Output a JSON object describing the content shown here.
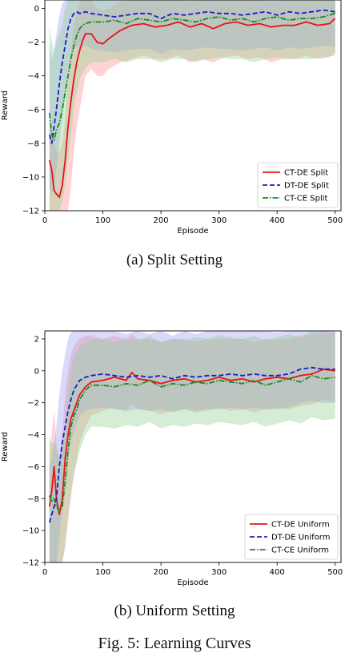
{
  "captions": {
    "a": "(a) Split Setting",
    "b": "(b) Uniform Setting",
    "figure": "Fig. 5: Learning Curves"
  },
  "chart_data": [
    {
      "type": "line",
      "title": "",
      "xlabel": "Episode",
      "ylabel": "Reward",
      "xlim": [
        0,
        510
      ],
      "ylim": [
        -12,
        0.5
      ],
      "xticks": [
        0,
        100,
        200,
        300,
        400,
        500
      ],
      "yticks": [
        -12,
        -10,
        -8,
        -6,
        -4,
        -2,
        0
      ],
      "legend_position": "lower-right",
      "grid": false,
      "series": [
        {
          "name": "CT-DE Split",
          "color": "#e8131b",
          "dash": "solid",
          "band_color": "#ff8c8c",
          "x": [
            8,
            12,
            16,
            20,
            25,
            30,
            35,
            40,
            45,
            50,
            55,
            60,
            65,
            70,
            80,
            90,
            100,
            110,
            130,
            150,
            170,
            190,
            210,
            230,
            250,
            270,
            290,
            310,
            330,
            350,
            370,
            390,
            410,
            430,
            450,
            470,
            490,
            500
          ],
          "y": [
            -9.0,
            -9.6,
            -10.8,
            -11.0,
            -11.2,
            -10.5,
            -9.0,
            -7.0,
            -5.5,
            -4.2,
            -3.2,
            -2.5,
            -1.9,
            -1.5,
            -1.5,
            -2.0,
            -2.1,
            -1.8,
            -1.3,
            -1.0,
            -0.9,
            -1.1,
            -1.0,
            -0.8,
            -1.1,
            -0.9,
            -1.2,
            -0.9,
            -0.8,
            -1.0,
            -0.9,
            -1.1,
            -1.0,
            -1.0,
            -0.8,
            -1.0,
            -0.9,
            -0.6
          ],
          "band_low": [
            -12,
            -12,
            -12,
            -12,
            -12,
            -12,
            -12,
            -12,
            -10.5,
            -8.5,
            -7,
            -6,
            -5,
            -4,
            -3.6,
            -4,
            -4,
            -3.6,
            -3.2,
            -3,
            -2.8,
            -3,
            -3,
            -2.8,
            -3.2,
            -3,
            -3.2,
            -2.9,
            -2.8,
            -3,
            -2.9,
            -3.2,
            -3.0,
            -3.0,
            -2.8,
            -3.0,
            -2.9,
            -2.6
          ],
          "band_high": [
            -7,
            -7.5,
            -8,
            -8.5,
            -8.5,
            -8,
            -6.5,
            -4,
            -2.5,
            -1,
            -0.2,
            0.4,
            0.5,
            0.5,
            0.5,
            0.0,
            -0.1,
            0.0,
            0.4,
            0.5,
            0.5,
            0.5,
            0.5,
            0.5,
            0.4,
            0.5,
            0.5,
            0.5,
            0.5,
            0.5,
            0.5,
            0.4,
            0.5,
            0.5,
            0.5,
            0.5,
            0.5,
            0.5
          ]
        },
        {
          "name": "DT-DE Split",
          "color": "#1c1cc8",
          "dash": "6,3",
          "band_color": "#9c9cf0",
          "x": [
            8,
            12,
            16,
            20,
            25,
            30,
            35,
            40,
            45,
            50,
            55,
            60,
            70,
            80,
            100,
            120,
            140,
            160,
            180,
            200,
            220,
            240,
            260,
            280,
            300,
            320,
            340,
            360,
            380,
            400,
            420,
            440,
            460,
            480,
            500
          ],
          "y": [
            -7.5,
            -8.0,
            -7.0,
            -6.0,
            -4.5,
            -3.2,
            -2.2,
            -1.2,
            -0.6,
            -0.3,
            -0.2,
            -0.3,
            -0.2,
            -0.3,
            -0.4,
            -0.5,
            -0.4,
            -0.3,
            -0.3,
            -0.6,
            -0.3,
            -0.4,
            -0.3,
            -0.2,
            -0.3,
            -0.3,
            -0.4,
            -0.3,
            -0.2,
            -0.4,
            -0.2,
            -0.3,
            -0.2,
            -0.1,
            -0.2
          ],
          "band_low": [
            -10.5,
            -11.0,
            -10.5,
            -9.5,
            -8.0,
            -6.5,
            -5.0,
            -3.8,
            -2.8,
            -2.5,
            -2.2,
            -2.4,
            -2.2,
            -2.4,
            -2.5,
            -2.6,
            -2.5,
            -2.4,
            -2.4,
            -2.7,
            -2.4,
            -2.5,
            -2.4,
            -2.3,
            -2.4,
            -2.4,
            -2.5,
            -2.4,
            -2.3,
            -2.5,
            -2.3,
            -2.4,
            -2.3,
            -2.2,
            -2.3
          ],
          "band_high": [
            -2.0,
            -3.0,
            -2.5,
            -1.5,
            -0.5,
            0.3,
            0.5,
            0.5,
            0.5,
            0.5,
            0.5,
            0.5,
            0.5,
            0.5,
            0.5,
            0.5,
            0.5,
            0.5,
            0.5,
            0.5,
            0.5,
            0.5,
            0.5,
            0.5,
            0.5,
            0.5,
            0.5,
            0.5,
            0.5,
            0.5,
            0.5,
            0.5,
            0.5,
            0.5,
            0.5
          ]
        },
        {
          "name": "CT-CE Split",
          "color": "#1f8a1f",
          "dash": "7,2,1.5,2",
          "band_color": "#8fd08f",
          "x": [
            8,
            12,
            16,
            20,
            25,
            30,
            35,
            40,
            45,
            50,
            55,
            60,
            65,
            70,
            80,
            100,
            120,
            140,
            160,
            180,
            200,
            220,
            240,
            260,
            280,
            300,
            320,
            340,
            360,
            380,
            400,
            420,
            440,
            460,
            480,
            500
          ],
          "y": [
            -6.2,
            -7.5,
            -7.8,
            -7.2,
            -6.8,
            -6.0,
            -5.0,
            -4.0,
            -3.0,
            -2.2,
            -1.6,
            -1.2,
            -1.0,
            -0.9,
            -0.8,
            -0.8,
            -0.7,
            -0.9,
            -0.6,
            -0.7,
            -0.8,
            -0.6,
            -0.7,
            -0.8,
            -0.6,
            -0.5,
            -0.7,
            -0.6,
            -0.8,
            -0.6,
            -0.5,
            -0.7,
            -0.6,
            -0.6,
            -0.5,
            -0.3
          ],
          "band_low": [
            -12,
            -12,
            -12,
            -12,
            -12,
            -11.5,
            -10.5,
            -9.0,
            -7.5,
            -6.0,
            -5.0,
            -4.2,
            -3.8,
            -3.5,
            -3.2,
            -3.2,
            -3.0,
            -3.2,
            -3.0,
            -3.0,
            -3.2,
            -3.0,
            -3.0,
            -3.2,
            -3.0,
            -2.9,
            -3.0,
            -3.0,
            -3.2,
            -3.0,
            -2.9,
            -3.0,
            -3.0,
            -3.0,
            -2.9,
            -2.8
          ],
          "band_high": [
            -1.0,
            -2.0,
            -2.5,
            -2.0,
            -1.5,
            -1.0,
            0.0,
            0.5,
            0.5,
            0.5,
            0.5,
            0.5,
            0.5,
            0.5,
            0.5,
            0.5,
            0.5,
            0.5,
            0.5,
            0.5,
            0.5,
            0.5,
            0.5,
            0.5,
            0.5,
            0.5,
            0.5,
            0.5,
            0.5,
            0.5,
            0.5,
            0.5,
            0.5,
            0.5,
            0.5,
            0.5
          ]
        }
      ]
    },
    {
      "type": "line",
      "title": "",
      "xlabel": "Episode",
      "ylabel": "Reward",
      "xlim": [
        0,
        510
      ],
      "ylim": [
        -12,
        2.5
      ],
      "xticks": [
        0,
        100,
        200,
        300,
        400,
        500
      ],
      "yticks": [
        -12,
        -10,
        -8,
        -6,
        -4,
        -2,
        0,
        2
      ],
      "legend_position": "lower-right",
      "grid": false,
      "series": [
        {
          "name": "CT-DE Uniform",
          "color": "#e8131b",
          "dash": "solid",
          "band_color": "#ff8c8c",
          "x": [
            8,
            12,
            16,
            20,
            25,
            30,
            35,
            40,
            45,
            50,
            55,
            60,
            70,
            80,
            100,
            120,
            140,
            150,
            160,
            180,
            200,
            220,
            240,
            260,
            280,
            300,
            320,
            340,
            360,
            380,
            400,
            420,
            440,
            460,
            480,
            500
          ],
          "y": [
            -8.5,
            -7.5,
            -6.0,
            -8.0,
            -9.0,
            -8.0,
            -5.5,
            -4.0,
            -3.0,
            -2.5,
            -2.0,
            -1.5,
            -1.0,
            -0.7,
            -0.6,
            -0.4,
            -0.6,
            -0.1,
            -0.5,
            -0.6,
            -0.8,
            -0.6,
            -0.5,
            -0.7,
            -0.6,
            -0.4,
            -0.6,
            -0.5,
            -0.7,
            -0.5,
            -0.4,
            -0.5,
            -0.3,
            -0.2,
            0.1,
            0.0
          ],
          "band_low": [
            -12,
            -12,
            -12,
            -12,
            -12,
            -12,
            -11,
            -9.5,
            -8.0,
            -6.5,
            -5.5,
            -4.5,
            -3.5,
            -2.8,
            -2.5,
            -2.3,
            -2.5,
            -2.0,
            -2.4,
            -2.5,
            -2.7,
            -2.5,
            -2.4,
            -2.6,
            -2.5,
            -2.3,
            -2.5,
            -2.4,
            -2.6,
            -2.4,
            -2.3,
            -2.4,
            -2.2,
            -2.1,
            -1.8,
            -1.9
          ],
          "band_high": [
            -5.0,
            -4.0,
            -2.5,
            -4.5,
            -5.5,
            -4.0,
            -1.5,
            0.0,
            1.0,
            1.5,
            1.8,
            2.0,
            2.2,
            2.2,
            2.0,
            2.2,
            2.0,
            2.3,
            2.0,
            2.0,
            1.8,
            2.0,
            2.0,
            1.8,
            2.0,
            2.0,
            2.0,
            2.0,
            1.8,
            2.0,
            2.0,
            2.0,
            2.2,
            2.3,
            2.5,
            2.4
          ]
        },
        {
          "name": "DT-DE Uniform",
          "color": "#1c1cc8",
          "dash": "6,3",
          "band_color": "#9c9cf0",
          "x": [
            8,
            12,
            16,
            20,
            25,
            30,
            35,
            40,
            45,
            50,
            60,
            70,
            80,
            100,
            120,
            140,
            160,
            180,
            200,
            220,
            240,
            260,
            280,
            300,
            320,
            340,
            360,
            380,
            400,
            420,
            440,
            460,
            480,
            500
          ],
          "y": [
            -9.5,
            -9.0,
            -8.5,
            -8.0,
            -6.0,
            -4.5,
            -3.5,
            -2.5,
            -1.8,
            -1.2,
            -0.6,
            -0.4,
            -0.3,
            -0.2,
            -0.3,
            -0.4,
            -0.3,
            -0.4,
            -0.3,
            -0.5,
            -0.3,
            -0.4,
            -0.3,
            -0.3,
            -0.2,
            -0.3,
            -0.2,
            -0.3,
            -0.3,
            -0.2,
            0.1,
            0.2,
            0.1,
            0.1
          ],
          "band_low": [
            -12,
            -12,
            -12,
            -12,
            -10.5,
            -8.5,
            -7.0,
            -5.5,
            -4.5,
            -3.8,
            -2.8,
            -2.5,
            -2.4,
            -2.3,
            -2.4,
            -2.5,
            -2.4,
            -2.5,
            -2.4,
            -2.6,
            -2.4,
            -2.5,
            -2.4,
            -2.4,
            -2.3,
            -2.4,
            -2.3,
            -2.4,
            -2.4,
            -2.3,
            -2.0,
            -1.9,
            -2.0,
            -2.0
          ],
          "band_high": [
            -6.0,
            -5.5,
            -4.5,
            -3.5,
            -1.5,
            0.0,
            1.0,
            2.0,
            2.4,
            2.5,
            2.5,
            2.5,
            2.5,
            2.5,
            2.5,
            2.3,
            2.5,
            2.3,
            2.5,
            2.2,
            2.5,
            2.3,
            2.5,
            2.5,
            2.5,
            2.5,
            2.5,
            2.5,
            2.4,
            2.5,
            2.5,
            2.5,
            2.5,
            2.5
          ]
        },
        {
          "name": "CT-CE Uniform",
          "color": "#1f8a1f",
          "dash": "7,2,1.5,2",
          "band_color": "#8fd08f",
          "x": [
            8,
            12,
            16,
            20,
            25,
            30,
            35,
            40,
            45,
            50,
            55,
            60,
            70,
            80,
            100,
            120,
            140,
            160,
            180,
            200,
            220,
            240,
            260,
            280,
            300,
            320,
            340,
            360,
            380,
            400,
            420,
            440,
            460,
            480,
            500
          ],
          "y": [
            -7.8,
            -8.2,
            -8.0,
            -8.5,
            -8.8,
            -8.5,
            -7.0,
            -5.0,
            -3.5,
            -2.8,
            -2.4,
            -1.8,
            -1.2,
            -0.9,
            -0.9,
            -1.0,
            -0.8,
            -0.9,
            -0.6,
            -1.0,
            -0.8,
            -0.9,
            -0.7,
            -0.8,
            -0.6,
            -0.7,
            -0.8,
            -0.6,
            -0.9,
            -0.7,
            -0.5,
            -0.7,
            -0.3,
            -0.5,
            -0.4
          ],
          "band_low": [
            -12,
            -12,
            -12,
            -12,
            -12,
            -12,
            -11,
            -9.0,
            -7.5,
            -6.5,
            -5.8,
            -5.0,
            -4.0,
            -3.5,
            -3.5,
            -3.6,
            -3.4,
            -3.5,
            -3.2,
            -3.6,
            -3.4,
            -3.5,
            -3.3,
            -3.4,
            -3.2,
            -3.3,
            -3.4,
            -3.2,
            -3.5,
            -3.3,
            -3.1,
            -3.3,
            -2.9,
            -3.1,
            -3.0
          ],
          "band_high": [
            -4.0,
            -4.5,
            -4.5,
            -5.0,
            -5.5,
            -5.0,
            -3.5,
            -1.5,
            0.0,
            0.8,
            1.2,
            1.5,
            1.8,
            2.0,
            2.0,
            1.8,
            2.0,
            1.9,
            2.2,
            1.8,
            2.0,
            1.9,
            2.1,
            2.0,
            2.2,
            2.1,
            2.0,
            2.2,
            1.9,
            2.1,
            2.3,
            2.1,
            2.5,
            2.3,
            2.4
          ]
        }
      ]
    }
  ]
}
